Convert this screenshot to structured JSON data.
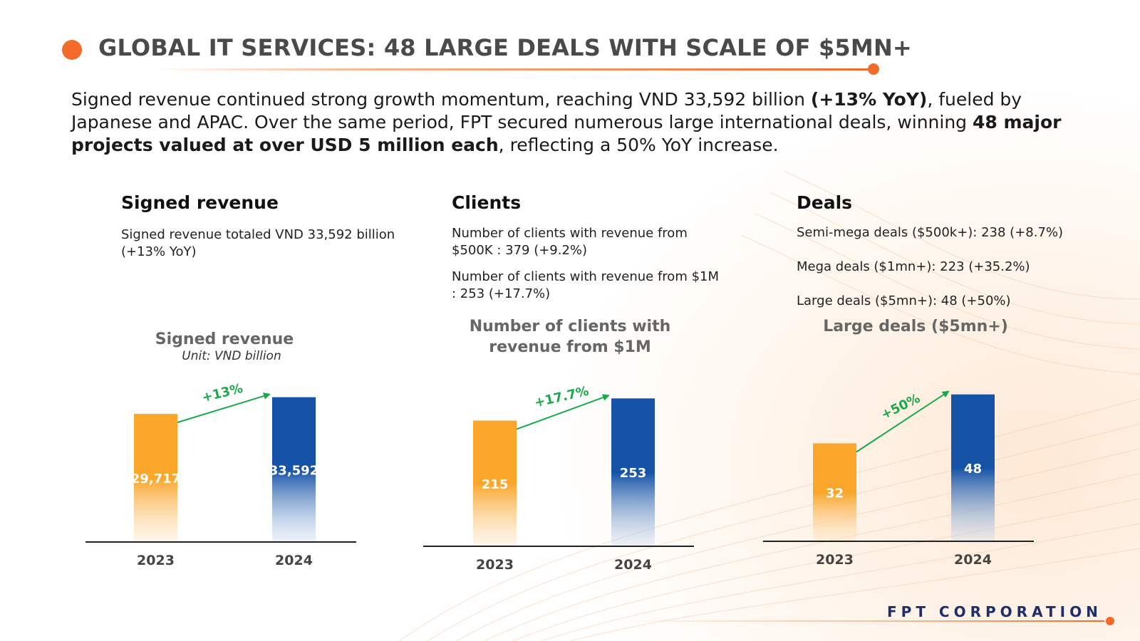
{
  "title": "GLOBAL IT SERVICES: 48 LARGE DEALS WITH SCALE OF $5MN+",
  "intro": {
    "p1": "Signed revenue continued strong growth momentum, reaching VND 33,592 billion ",
    "b1": "(+13% YoY)",
    "p2": ", fueled by Japanese and APAC. Over the same period, FPT secured numerous large international deals, winning ",
    "b2": "48 major projects valued at over USD 5 million each",
    "p3": ", reflecting a 50% YoY increase."
  },
  "columns": {
    "revenue": {
      "heading": "Signed revenue",
      "line1": "Signed revenue totaled VND 33,592 billion (+13% YoY)"
    },
    "clients": {
      "heading": "Clients",
      "line1": "Number of clients with revenue from $500K : 379 (+9.2%)",
      "line2": "Number of clients with revenue from $1M : 253 (+17.7%)"
    },
    "deals": {
      "heading": "Deals",
      "line1": "Semi-mega deals ($500k+): 238 (+8.7%)",
      "line2": "Mega deals ($1mn+): 223 (+35.2%)",
      "line3": "Large deals ($5mn+): 48 (+50%)"
    }
  },
  "chart_data": [
    {
      "type": "bar",
      "title": "Signed revenue",
      "subtitle": "Unit: VND billion",
      "categories": [
        "2023",
        "2024"
      ],
      "values": [
        29717,
        33592
      ],
      "value_labels": [
        "29,717",
        "33,592"
      ],
      "growth_label": "+13%",
      "ylim": [
        0,
        38000
      ]
    },
    {
      "type": "bar",
      "title": "Number of clients with revenue from $1M",
      "categories": [
        "2023",
        "2024"
      ],
      "values": [
        215,
        253
      ],
      "value_labels": [
        "215",
        "253"
      ],
      "growth_label": "+17.7%",
      "ylim": [
        0,
        290
      ]
    },
    {
      "type": "bar",
      "title": "Large deals ($5mn+)",
      "categories": [
        "2023",
        "2024"
      ],
      "values": [
        32,
        48
      ],
      "value_labels": [
        "32",
        "48"
      ],
      "growth_label": "+50%",
      "ylim": [
        0,
        54
      ]
    }
  ],
  "footer": {
    "brand": "FPT CORPORATION"
  },
  "colors": {
    "accent": "#f26b2a",
    "bar_2023": "#f9a62b",
    "bar_2024": "#1653a6",
    "growth": "#1aaa4b"
  }
}
